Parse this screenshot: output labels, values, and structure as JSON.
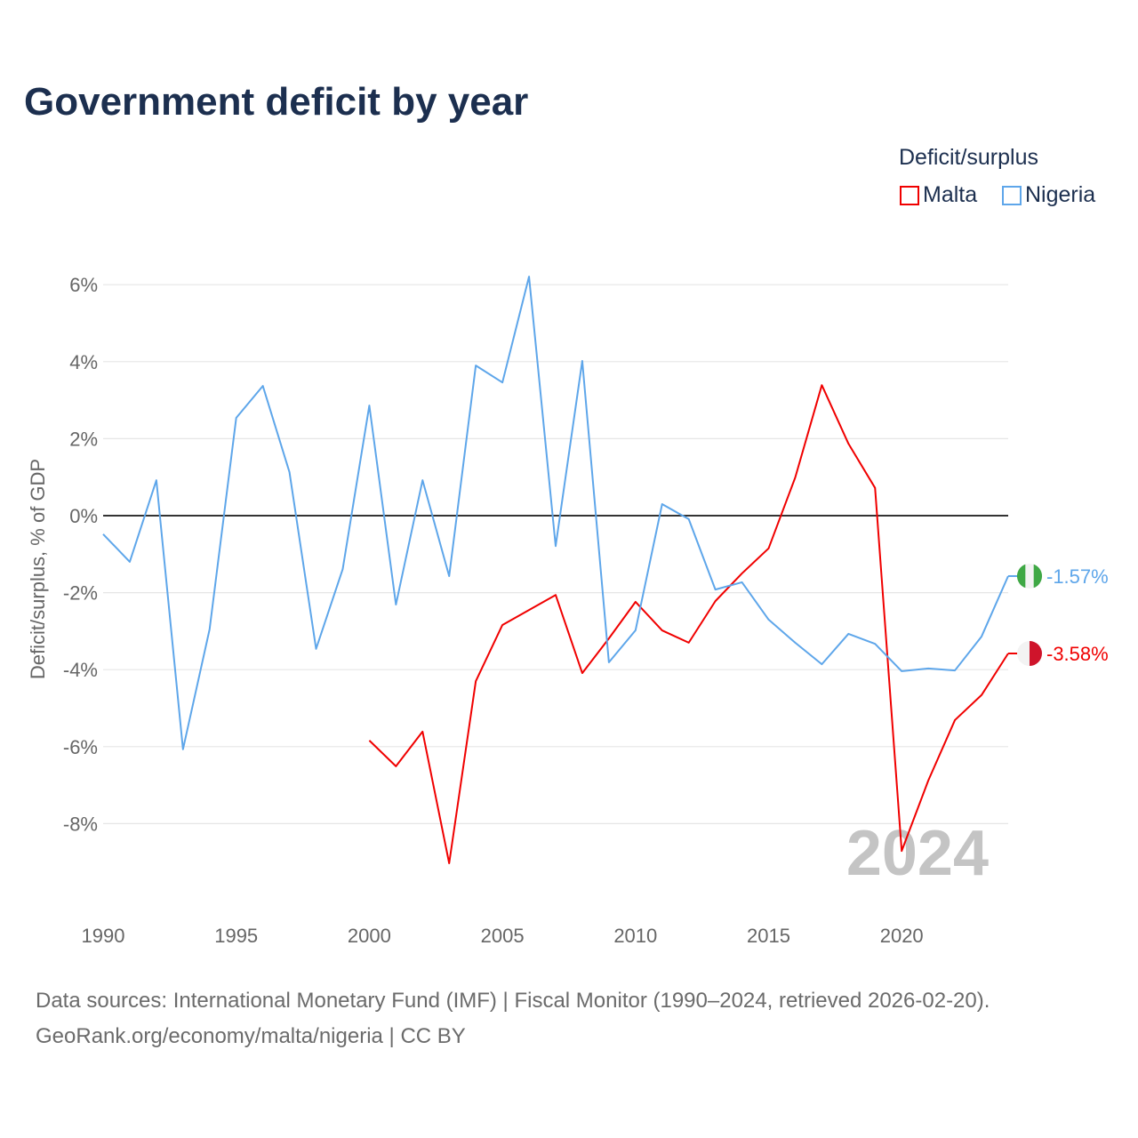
{
  "title": "Government deficit by year",
  "legend": {
    "title": "Deficit/surplus",
    "items": [
      {
        "label": "Malta",
        "color": "#f00000"
      },
      {
        "label": "Nigeria",
        "color": "#5ea6ea"
      }
    ]
  },
  "source_lines": [
    "Data sources: International Monetary Fund (IMF) | Fiscal Monitor (1990–2024, retrieved 2026-02-20).",
    "GeoRank.org/economy/malta/nigeria | CC BY"
  ],
  "chart_data": {
    "type": "line",
    "title": "Government deficit by year",
    "xlabel": "",
    "ylabel": "Deficit/surplus, % of GDP",
    "xlim": [
      1990,
      2024
    ],
    "ylim": [
      -10,
      6.5
    ],
    "yticks": [
      6,
      4,
      2,
      0,
      -2,
      -4,
      -6,
      -8
    ],
    "ytick_labels": [
      "6%",
      "4%",
      "2%",
      "0%",
      "-2%",
      "-4%",
      "-6%",
      "-8%"
    ],
    "xticks": [
      1990,
      1995,
      2000,
      2005,
      2010,
      2015,
      2020
    ],
    "xtick_labels": [
      "1990",
      "1995",
      "2000",
      "2005",
      "2010",
      "2015",
      "2020"
    ],
    "grid": true,
    "legend_position": "top-right",
    "year_watermark": "2024",
    "series": [
      {
        "name": "Malta",
        "color": "#f00000",
        "end_label": "-3.58%",
        "x": [
          2000,
          2001,
          2002,
          2003,
          2004,
          2005,
          2006,
          2007,
          2008,
          2009,
          2010,
          2011,
          2012,
          2013,
          2014,
          2015,
          2016,
          2017,
          2018,
          2019,
          2020,
          2021,
          2022,
          2023,
          2024
        ],
        "values": [
          -5.84,
          -6.51,
          -5.61,
          -9.03,
          -4.3,
          -2.84,
          -2.45,
          -2.06,
          -4.09,
          -3.19,
          -2.24,
          -2.98,
          -3.3,
          -2.22,
          -1.5,
          -0.85,
          0.99,
          3.39,
          1.87,
          0.72,
          -8.71,
          -6.88,
          -5.31,
          -4.66,
          -3.58
        ]
      },
      {
        "name": "Nigeria",
        "color": "#5ea6ea",
        "end_label": "-1.57%",
        "x": [
          1990,
          1991,
          1992,
          1993,
          1994,
          1995,
          1996,
          1997,
          1998,
          1999,
          2000,
          2001,
          2002,
          2003,
          2004,
          2005,
          2006,
          2007,
          2008,
          2009,
          2010,
          2011,
          2012,
          2013,
          2014,
          2015,
          2016,
          2017,
          2018,
          2019,
          2020,
          2021,
          2022,
          2023,
          2024
        ],
        "values": [
          -0.48,
          -1.2,
          0.92,
          -6.07,
          -2.95,
          2.54,
          3.37,
          1.13,
          -3.46,
          -1.39,
          2.86,
          -2.31,
          0.92,
          -1.57,
          3.9,
          3.46,
          6.21,
          -0.79,
          4.02,
          -3.81,
          -2.98,
          0.3,
          -0.09,
          -1.92,
          -1.73,
          -2.7,
          -3.3,
          -3.86,
          -3.07,
          -3.33,
          -4.04,
          -3.97,
          -4.02,
          -3.14,
          -1.57
        ]
      }
    ]
  }
}
